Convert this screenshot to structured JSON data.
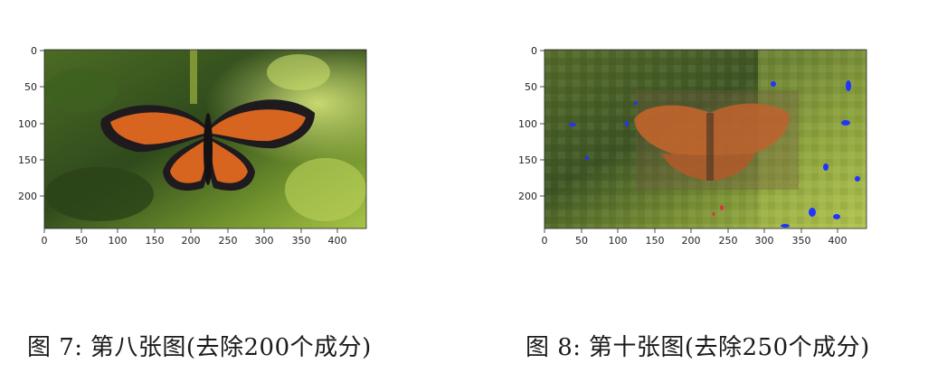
{
  "figures": [
    {
      "caption": {
        "label": "图 7:",
        "text": "第八张图(去除200个成分)"
      },
      "image_description": "butterfly-clear",
      "axes": {
        "xticks": [
          "0",
          "50",
          "100",
          "150",
          "200",
          "250",
          "300",
          "350",
          "400"
        ],
        "yticks": [
          "0",
          "50",
          "100",
          "150",
          "200"
        ]
      }
    },
    {
      "caption": {
        "label": "图 8:",
        "text": "第十张图(去除250个成分)"
      },
      "image_description": "butterfly-blurred-artifacts",
      "axes": {
        "xticks": [
          "0",
          "50",
          "100",
          "150",
          "200",
          "250",
          "300",
          "350",
          "400"
        ],
        "yticks": [
          "0",
          "50",
          "100",
          "150",
          "200"
        ]
      }
    }
  ],
  "colors": {
    "foliage_dark": "#2f4a1c",
    "foliage_light": "#a8c447",
    "wing_orange": "#d8651f",
    "wing_black": "#1e1a1e",
    "artifact_blue": "#2233ff"
  }
}
